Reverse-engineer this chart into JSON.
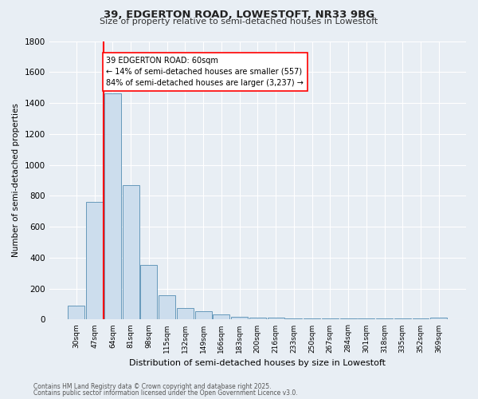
{
  "title1": "39, EDGERTON ROAD, LOWESTOFT, NR33 9BG",
  "title2": "Size of property relative to semi-detached houses in Lowestoft",
  "xlabel": "Distribution of semi-detached houses by size in Lowestoft",
  "ylabel": "Number of semi-detached properties",
  "categories": [
    "30sqm",
    "47sqm",
    "64sqm",
    "81sqm",
    "98sqm",
    "115sqm",
    "132sqm",
    "149sqm",
    "166sqm",
    "183sqm",
    "200sqm",
    "216sqm",
    "233sqm",
    "250sqm",
    "267sqm",
    "284sqm",
    "301sqm",
    "318sqm",
    "335sqm",
    "352sqm",
    "369sqm"
  ],
  "values": [
    90,
    760,
    1460,
    870,
    355,
    155,
    75,
    55,
    35,
    20,
    15,
    10,
    5,
    5,
    5,
    5,
    5,
    5,
    5,
    5,
    15
  ],
  "bar_color": "#ccdded",
  "bar_edge_color": "#6699bb",
  "annotation_text": "39 EDGERTON ROAD: 60sqm\n← 14% of semi-detached houses are smaller (557)\n84% of semi-detached houses are larger (3,237) →",
  "footer1": "Contains HM Land Registry data © Crown copyright and database right 2025.",
  "footer2": "Contains public sector information licensed under the Open Government Licence v3.0.",
  "bg_color": "#e8eef4",
  "plot_bg_color": "#e8eef4",
  "ylim": [
    0,
    1800
  ],
  "yticks": [
    0,
    200,
    400,
    600,
    800,
    1000,
    1200,
    1400,
    1600,
    1800
  ],
  "redline_x": 1.5
}
